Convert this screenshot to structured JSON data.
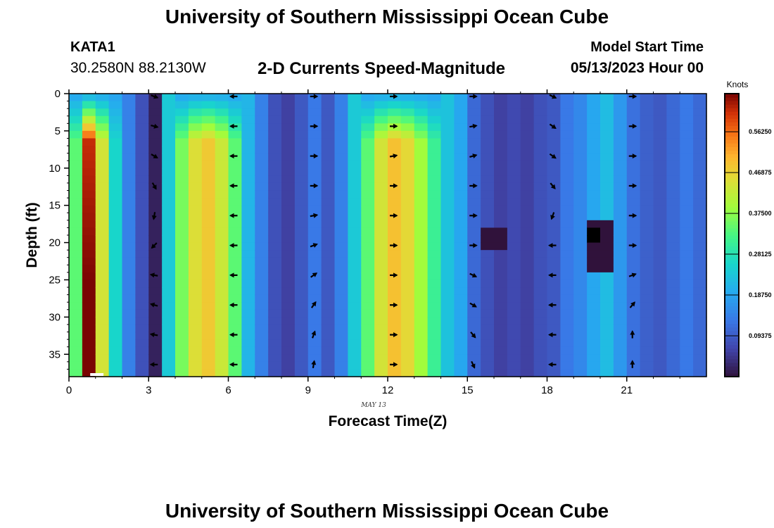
{
  "header": {
    "title": "University of Southern Mississippi Ocean Cube",
    "station_id": "KATA1",
    "coords": "30.2580N  88.2130W",
    "plot_title": "2-D Currents Speed-Magnitude",
    "start_label": "Model Start Time",
    "start_value": "05/13/2023 Hour 00"
  },
  "footer": {
    "title": "University of Southern Mississippi Ocean Cube"
  },
  "chart_data": {
    "type": "heatmap",
    "xlabel": "Forecast Time(Z)",
    "ylabel": "Depth (ft)",
    "date_label": "MAY 13",
    "xlim": [
      0,
      24
    ],
    "ylim": [
      0,
      38
    ],
    "x_ticks": [
      0,
      3,
      6,
      9,
      12,
      15,
      18,
      21
    ],
    "y_ticks": [
      0,
      5,
      10,
      15,
      20,
      25,
      30,
      35
    ],
    "colorbar": {
      "title": "Knots",
      "min": 0,
      "max": 0.65,
      "ticks": [
        "0.56250",
        "0.46875",
        "0.37500",
        "0.28125",
        "0.18750",
        "0.09375"
      ],
      "tick_values": [
        0.5625,
        0.46875,
        0.375,
        0.28125,
        0.1875,
        0.09375
      ]
    },
    "hour_speeds_knots": [
      0.34,
      0.6,
      0.44,
      0.26,
      0.14,
      0.08,
      0.02,
      0.24,
      0.36,
      0.45,
      0.48,
      0.43,
      0.34,
      0.21,
      0.14,
      0.08,
      0.06,
      0.09,
      0.13,
      0.09,
      0.14,
      0.24,
      0.34,
      0.44,
      0.49,
      0.46,
      0.39,
      0.31,
      0.23,
      0.19,
      0.11,
      0.08,
      0.06,
      0.07,
      0.06,
      0.08,
      0.09,
      0.13,
      0.15,
      0.19,
      0.22,
      0.17,
      0.12,
      0.1,
      0.09,
      0.11,
      0.13,
      0.11
    ],
    "x_step_hours": 0.5,
    "depth_step_ft": 1,
    "anomalies": [
      {
        "x_from": 15.5,
        "x_to": 16.5,
        "depth_from": 18,
        "depth_to": 21,
        "speed": 0.0
      },
      {
        "x_from": 19.5,
        "x_to": 20.5,
        "depth_from": 17,
        "depth_to": 24,
        "speed": 0.0
      },
      {
        "x_from": 19.6,
        "x_to": 20.1,
        "depth_from": 18.5,
        "depth_to": 19.6,
        "speed": -0.05
      }
    ],
    "vectors": {
      "hours": [
        3,
        6,
        9,
        12,
        15,
        18,
        21
      ],
      "depths": [
        0,
        4,
        8,
        12,
        16,
        20,
        24,
        28,
        32,
        36
      ],
      "directions_deg": [
        [
          -20,
          180,
          0,
          0,
          0,
          -25,
          0
        ],
        [
          -15,
          180,
          0,
          0,
          10,
          -35,
          0
        ],
        [
          -30,
          180,
          0,
          10,
          15,
          -35,
          0
        ],
        [
          -60,
          180,
          0,
          0,
          0,
          -50,
          0
        ],
        [
          -100,
          180,
          10,
          0,
          0,
          -110,
          0
        ],
        [
          -135,
          180,
          20,
          0,
          0,
          180,
          0
        ],
        [
          170,
          180,
          35,
          0,
          -25,
          180,
          20
        ],
        [
          165,
          180,
          55,
          0,
          -30,
          180,
          50
        ],
        [
          170,
          180,
          70,
          0,
          -50,
          180,
          90
        ],
        [
          180,
          180,
          80,
          0,
          -65,
          180,
          90
        ]
      ]
    }
  }
}
